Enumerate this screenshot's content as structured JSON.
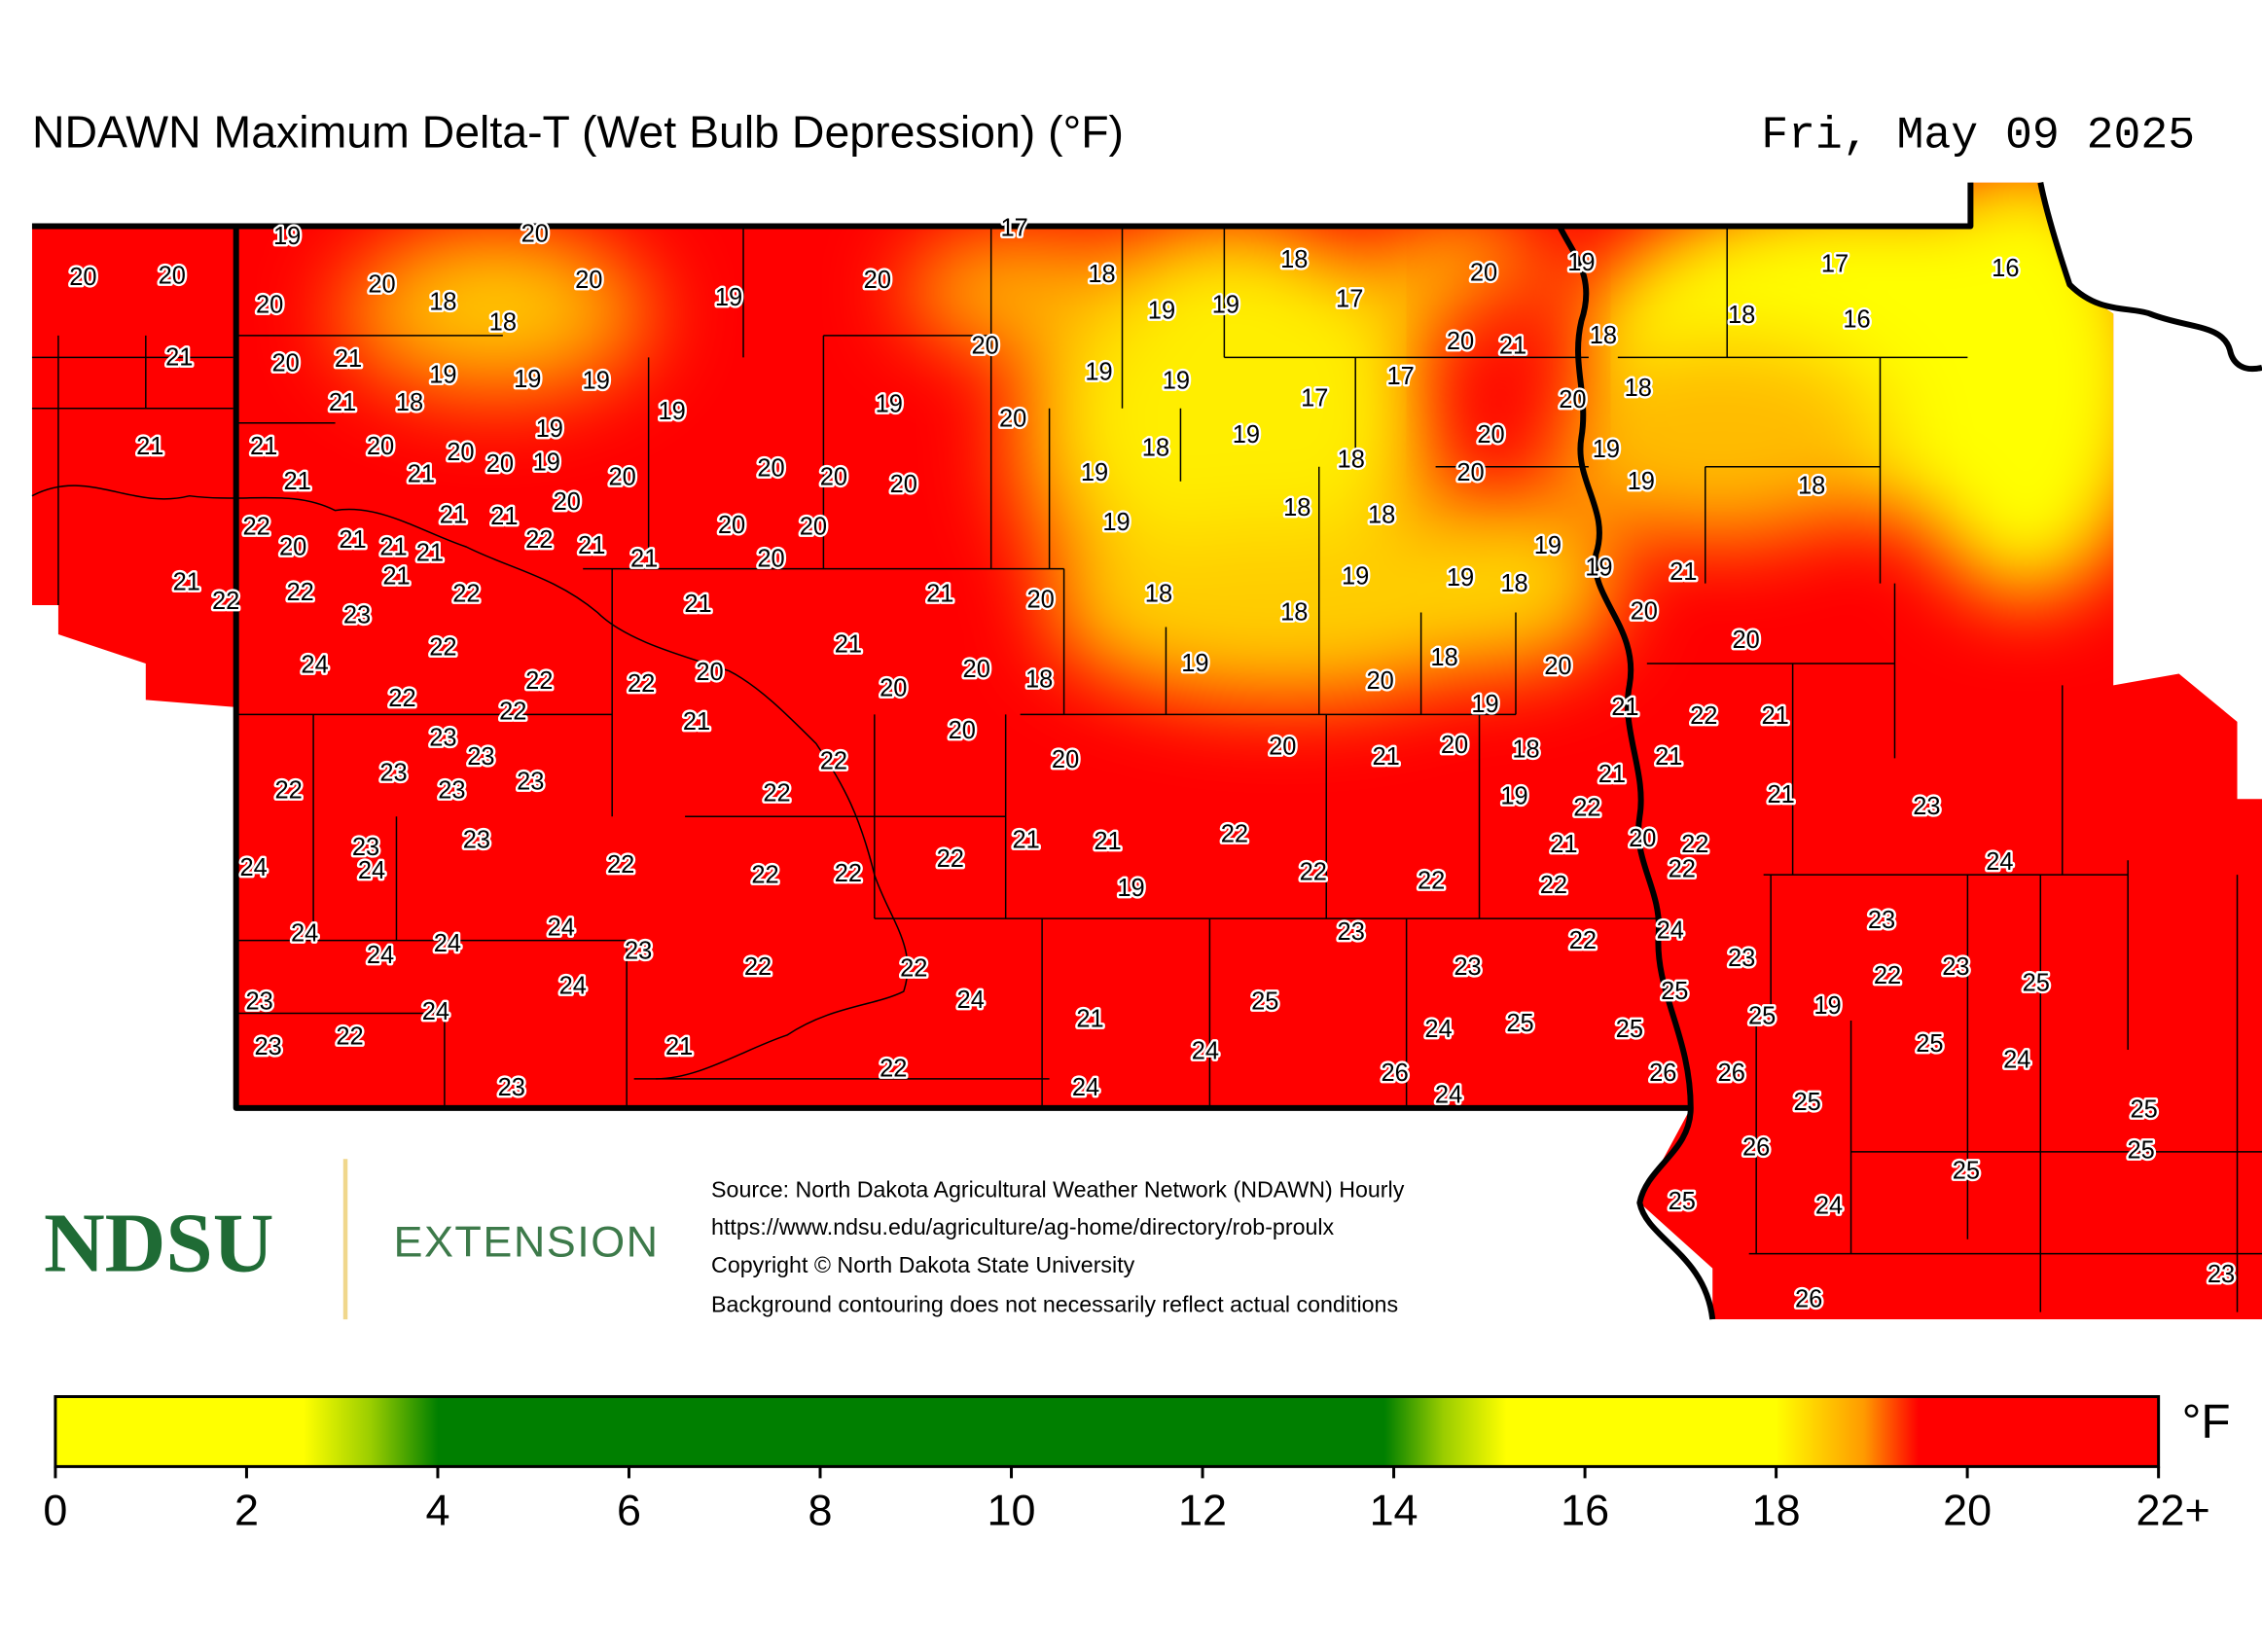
{
  "header": {
    "title": "NDAWN Maximum Delta-T (Wet Bulb Depression) (°F)",
    "date": "Fri, May 09 2025"
  },
  "stations": [
    19,
    20,
    17,
    20,
    20,
    20,
    20,
    18,
    18,
    20,
    19,
    20,
    18,
    18,
    17,
    20,
    19,
    17,
    16,
    19,
    19,
    18,
    16,
    21,
    20,
    21,
    21,
    18,
    19,
    19,
    19,
    19,
    20,
    20,
    21,
    18,
    19,
    19,
    17,
    17,
    18,
    20,
    19,
    20,
    21,
    21,
    20,
    19,
    20,
    20,
    19,
    20,
    21,
    21,
    20,
    20,
    20,
    19,
    18,
    19,
    18,
    20,
    20,
    19,
    19,
    18,
    22,
    20,
    21,
    21,
    21,
    21,
    21,
    20,
    22,
    21,
    21,
    20,
    20,
    20,
    19,
    18,
    18,
    19,
    19,
    21,
    19,
    19,
    18,
    21,
    22,
    22,
    23,
    21,
    22,
    21,
    21,
    20,
    18,
    18,
    20,
    20,
    24,
    22,
    21,
    22,
    22,
    20,
    20,
    20,
    18,
    19,
    20,
    18,
    20,
    22,
    22,
    21,
    20,
    19,
    21,
    22,
    21,
    23,
    23,
    23,
    23,
    23,
    22,
    20,
    20,
    21,
    20,
    18,
    21,
    21,
    22,
    22,
    19,
    22,
    21,
    23,
    23,
    23,
    24,
    24,
    22,
    22,
    22,
    22,
    21,
    21,
    22,
    19,
    22,
    22,
    21,
    20,
    22,
    22,
    22,
    24,
    24,
    24,
    24,
    24,
    23,
    22,
    22,
    23,
    23,
    22,
    24,
    23,
    23,
    22,
    23,
    25,
    23,
    24,
    24,
    24,
    21,
    25,
    25,
    25,
    19,
    25,
    25,
    24,
    23,
    22,
    21,
    22,
    24,
    25,
    24,
    23,
    24,
    26,
    24,
    26,
    26,
    25,
    25,
    26,
    25,
    25,
    25,
    24,
    23,
    26
  ],
  "logo": {
    "name": "NDSU",
    "unit": "EXTENSION"
  },
  "credits": [
    "Source: North Dakota Agricultural Weather Network (NDAWN) Hourly",
    "https://www.ndsu.edu/agriculture/ag-home/directory/rob-proulx",
    "Copyright © North Dakota State University",
    "Background contouring does not necessarily reflect actual conditions"
  ],
  "colorbar": {
    "range": [
      0,
      22
    ],
    "ticks": [
      0,
      2,
      4,
      6,
      8,
      10,
      12,
      14,
      16,
      18,
      20,
      {
        "value": 22,
        "label": "22+"
      }
    ],
    "unit": "°F"
  }
}
